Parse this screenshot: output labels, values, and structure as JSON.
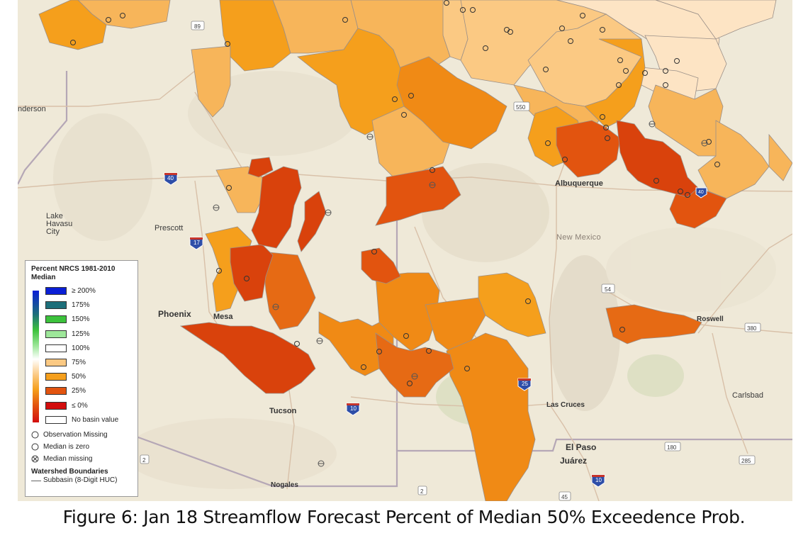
{
  "caption": "Figure 6: Jan 18 Streamflow Forecast Percent of Median 50% Exceedence Prob.",
  "colors": {
    "p200": "#0a1fd6",
    "p175": "#1d6f7a",
    "p150": "#3cc23c",
    "p125": "#9ee79a",
    "p100": "#ffffff",
    "p75": "#fbc983",
    "p50": "#f59f1c",
    "p25": "#e2540f",
    "p0": "#d20d0d",
    "none": "#ffffff",
    "near100": "#fde4c4",
    "p60": "#f7b55a",
    "p40": "#f08a15",
    "p30": "#e66a14",
    "p20": "#d9420c"
  },
  "legend": {
    "title": "Percent NRCS 1981-2010 Median",
    "classes": [
      {
        "label": "≥ 200%",
        "color": "#0a1fd6"
      },
      {
        "label": "175%",
        "color": "#1d6f7a"
      },
      {
        "label": "150%",
        "color": "#3cc23c"
      },
      {
        "label": "125%",
        "color": "#9ee79a"
      },
      {
        "label": "100%",
        "color": "#ffffff"
      },
      {
        "label": "75%",
        "color": "#fbc983"
      },
      {
        "label": "50%",
        "color": "#f59f1c"
      },
      {
        "label": "25%",
        "color": "#e2540f"
      },
      {
        "label": "≤ 0%",
        "color": "#d20d0d"
      },
      {
        "label": "No basin value",
        "color": "#ffffff"
      }
    ],
    "symbols": [
      {
        "label": "Observation Missing",
        "icon": "circle-open-icon"
      },
      {
        "label": "Median is zero",
        "icon": "circle-open-icon"
      },
      {
        "label": "Median missing",
        "icon": "circle-x-icon"
      }
    ],
    "watershed_title": "Watershed Boundaries",
    "watershed_item": "Subbasin (8-Digit HUC)"
  },
  "places": {
    "henderson": "nderson",
    "lake_havasu": "Lake\nHavasu\nCity",
    "prescott": "Prescott",
    "phoenix": "Phoenix",
    "mesa": "Mesa",
    "tucson": "Tucson",
    "nogales": "Nogales",
    "albuquerque": "Albuquerque",
    "new_mexico": "New Mexico",
    "roswell": "Roswell",
    "las_cruces": "Las Cruces",
    "el_paso": "El Paso",
    "juarez": "Juárez",
    "carlsbad": "Carlsbad"
  },
  "highways": {
    "i40": "40",
    "i17": "17",
    "i10": "10",
    "i25": "25",
    "i10b": "10",
    "i40b": "40",
    "us89": "89",
    "us550": "550",
    "us54": "54",
    "us380": "380",
    "us180": "180",
    "us285": "285",
    "r2a": "2",
    "r2b": "2",
    "r45": "45"
  }
}
